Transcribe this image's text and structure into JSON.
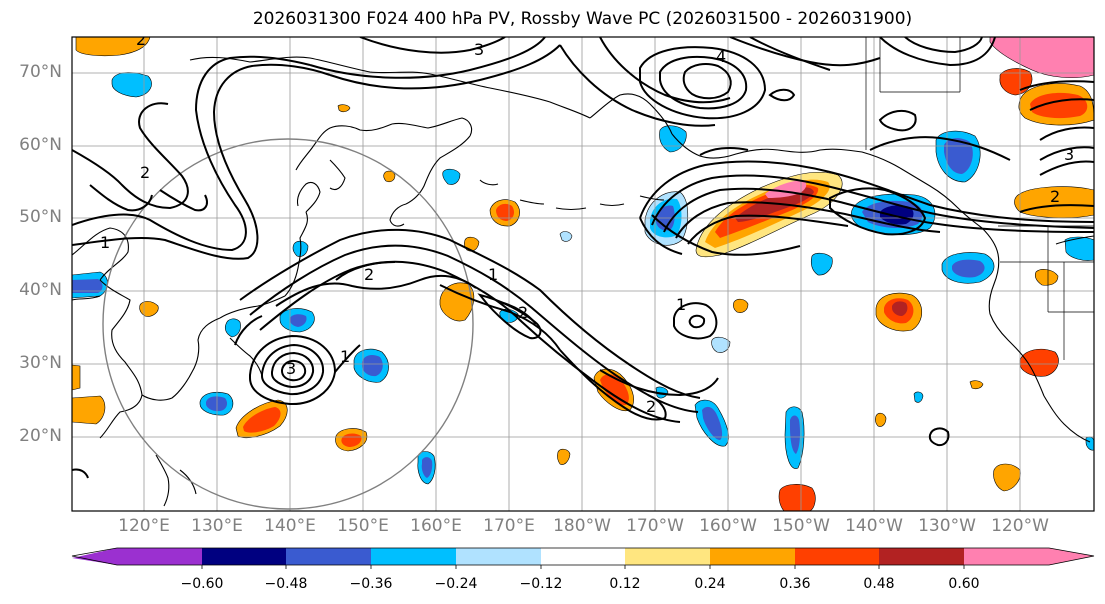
{
  "title": "2026031300 F024 400 hPa PV, Rossby Wave PC (2026031500 - 2026031900)",
  "lat_labels": [
    "70°N",
    "60°N",
    "50°N",
    "40°N",
    "30°N",
    "20°N"
  ],
  "lon_labels": [
    "120°E",
    "130°E",
    "140°E",
    "150°E",
    "160°E",
    "170°E",
    "180°W",
    "170°W",
    "160°W",
    "150°W",
    "140°W",
    "130°W",
    "120°W"
  ],
  "colorbar": {
    "ticks": [
      "−0.60",
      "−0.48",
      "−0.36",
      "−0.24",
      "−0.12",
      "0.12",
      "0.24",
      "0.36",
      "0.48",
      "0.60"
    ],
    "colors": [
      "#9b30d0",
      "#000080",
      "#3a5bd0",
      "#00bfff",
      "#b0e2ff",
      "#ffffff",
      "#ffe680",
      "#ffa500",
      "#ff4000",
      "#b22222",
      "#ff80b0"
    ]
  },
  "contour_labels": [
    "1",
    "2",
    "2",
    "3",
    "4",
    "1",
    "2",
    "2",
    "2",
    "1",
    "3",
    "2",
    "1",
    "3"
  ]
}
